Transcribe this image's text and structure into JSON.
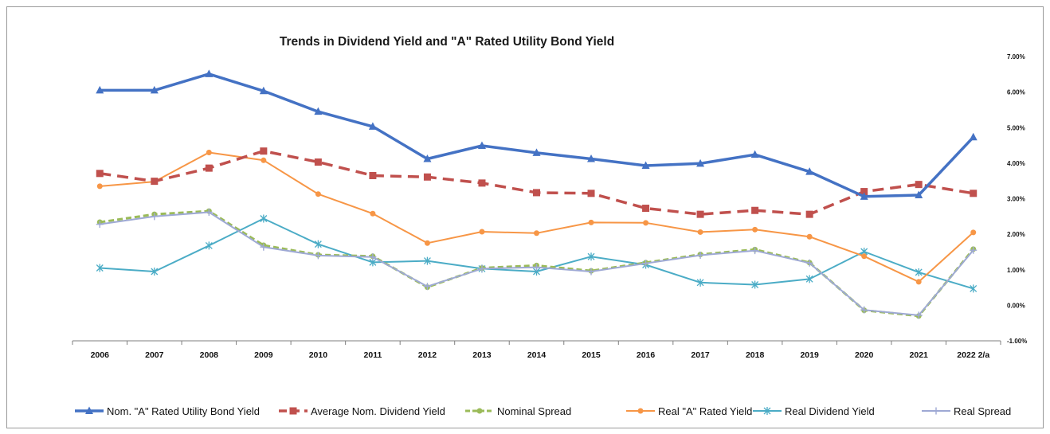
{
  "chart_data": {
    "type": "line",
    "title": "Trends in Dividend Yield and \"A\" Rated Utility Bond Yield",
    "xlabel": "",
    "ylabel": "",
    "ylim": [
      -0.01,
      0.07
    ],
    "y_ticks": [
      -0.01,
      0,
      0.01,
      0.02,
      0.03,
      0.04,
      0.05,
      0.06,
      0.07
    ],
    "y_tick_labels": [
      "-1.00%",
      "0.00%",
      "1.00%",
      "2.00%",
      "3.00%",
      "4.00%",
      "5.00%",
      "6.00%",
      "7.00%"
    ],
    "y_axis_position": "right",
    "grid": false,
    "legend_position": "bottom",
    "categories": [
      "2006",
      "2007",
      "2008",
      "2009",
      "2010",
      "2011",
      "2012",
      "2013",
      "2014",
      "2015",
      "2016",
      "2017",
      "2018",
      "2019",
      "2020",
      "2021",
      "2022 2/a"
    ],
    "series": [
      {
        "name": "Nom. \"A\" Rated Utility Bond Yield",
        "color": "#4472C4",
        "style": "solid",
        "marker": "triangle",
        "values": [
          0.0605,
          0.0605,
          0.0651,
          0.0603,
          0.0545,
          0.0503,
          0.0412,
          0.0449,
          0.0429,
          0.0412,
          0.0393,
          0.0399,
          0.0424,
          0.0376,
          0.0306,
          0.031,
          0.0473
        ]
      },
      {
        "name": "Average Nom. Dividend Yield",
        "color": "#C0504D",
        "style": "dashed",
        "marker": "square",
        "values": [
          0.0371,
          0.0349,
          0.0386,
          0.0434,
          0.0403,
          0.0365,
          0.0361,
          0.0344,
          0.0317,
          0.0315,
          0.0273,
          0.0256,
          0.0267,
          0.0256,
          0.032,
          0.034,
          0.0315
        ]
      },
      {
        "name": "Nominal Spread",
        "color": "#9BBB59",
        "style": "dashed",
        "marker": "circle",
        "values": [
          0.0234,
          0.0256,
          0.0265,
          0.0169,
          0.0142,
          0.0138,
          0.0051,
          0.0105,
          0.0112,
          0.0097,
          0.012,
          0.0143,
          0.0157,
          0.012,
          -0.0014,
          -0.003,
          0.0158
        ]
      },
      {
        "name": "Real \"A\" Rated Yield",
        "color": "#F79646",
        "style": "solid",
        "marker": "circle",
        "values": [
          0.0335,
          0.0348,
          0.043,
          0.0408,
          0.0313,
          0.0258,
          0.0175,
          0.0207,
          0.0203,
          0.0233,
          0.0232,
          0.0206,
          0.0213,
          0.0193,
          0.0138,
          0.0066,
          0.0205
        ]
      },
      {
        "name": "Real Dividend Yield",
        "color": "#4BACC6",
        "style": "solid",
        "marker": "star",
        "values": [
          0.0105,
          0.0095,
          0.0168,
          0.0244,
          0.0172,
          0.0121,
          0.0125,
          0.0103,
          0.0095,
          0.0137,
          0.0114,
          0.0064,
          0.0058,
          0.0074,
          0.0151,
          0.0093,
          0.0047
        ]
      },
      {
        "name": "Real Spread",
        "color": "#9EA9D4",
        "style": "solid",
        "marker": "plus",
        "values": [
          0.0228,
          0.025,
          0.0262,
          0.0164,
          0.014,
          0.0136,
          0.0053,
          0.0103,
          0.0107,
          0.0095,
          0.0118,
          0.0141,
          0.0154,
          0.0119,
          -0.0013,
          -0.0028,
          0.0155
        ]
      }
    ]
  }
}
